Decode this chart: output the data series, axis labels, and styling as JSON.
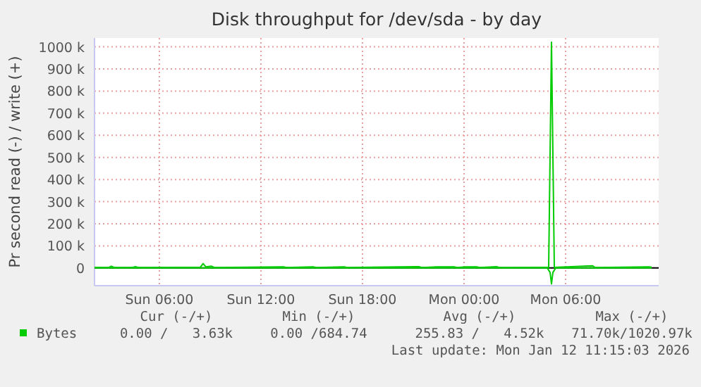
{
  "chart_data": {
    "type": "line",
    "title": "Disk throughput for /dev/sda - by day",
    "ylabel": "Pr second read (-) / write (+)",
    "xlim": [
      "2026-01-11T02:10",
      "2026-01-12T11:30"
    ],
    "xticks": [
      {
        "value": "2026-01-11T06:00",
        "label": "Sun 06:00"
      },
      {
        "value": "2026-01-11T12:00",
        "label": "Sun 12:00"
      },
      {
        "value": "2026-01-11T18:00",
        "label": "Sun 18:00"
      },
      {
        "value": "2026-01-12T00:00",
        "label": "Mon 00:00"
      },
      {
        "value": "2026-01-12T06:00",
        "label": "Mon 06:00"
      }
    ],
    "ylim": [
      -80000,
      1040000
    ],
    "yticks": [
      {
        "value": 0,
        "label": "0"
      },
      {
        "value": 100000,
        "label": "100 k"
      },
      {
        "value": 200000,
        "label": "200 k"
      },
      {
        "value": 300000,
        "label": "300 k"
      },
      {
        "value": 400000,
        "label": "400 k"
      },
      {
        "value": 500000,
        "label": "500 k"
      },
      {
        "value": 600000,
        "label": "600 k"
      },
      {
        "value": 700000,
        "label": "700 k"
      },
      {
        "value": 800000,
        "label": "800 k"
      },
      {
        "value": 900000,
        "label": "900 k"
      },
      {
        "value": 1000000,
        "label": "1000 k"
      }
    ],
    "grid": true,
    "legend": "bottom",
    "series": [
      {
        "name": "Bytes",
        "color": "#00cc00",
        "x": [
          "2026-01-11T02:10",
          "2026-01-11T03:00",
          "2026-01-11T03:10",
          "2026-01-11T03:20",
          "2026-01-11T04:25",
          "2026-01-11T04:35",
          "2026-01-11T04:45",
          "2026-01-11T08:25",
          "2026-01-11T08:35",
          "2026-01-11T08:45",
          "2026-01-11T09:05",
          "2026-01-11T09:15",
          "2026-01-11T13:20",
          "2026-01-11T13:30",
          "2026-01-11T15:05",
          "2026-01-11T15:15",
          "2026-01-11T16:55",
          "2026-01-11T17:05",
          "2026-01-11T21:10",
          "2026-01-11T21:20",
          "2026-01-11T21:30",
          "2026-01-11T22:25",
          "2026-01-11T23:25",
          "2026-01-11T23:35",
          "2026-01-12T00:05",
          "2026-01-12T00:45",
          "2026-01-12T00:55",
          "2026-01-12T01:55",
          "2026-01-12T02:05",
          "2026-01-12T05:00",
          "2026-01-12T05:10",
          "2026-01-12T05:20",
          "2026-01-12T07:35",
          "2026-01-12T07:45",
          "2026-01-12T10:55",
          "2026-01-12T11:05"
        ],
        "values": [
          3000,
          2000,
          8000,
          2000,
          2000,
          6000,
          2000,
          3000,
          20000,
          5000,
          8000,
          2000,
          5000,
          2000,
          5000,
          2000,
          5000,
          2000,
          6000,
          6000,
          2000,
          5000,
          5000,
          2000,
          5000,
          5000,
          2000,
          6000,
          2000,
          3000,
          1020970,
          3000,
          10000,
          2000,
          5000,
          3630
        ]
      },
      {
        "color": "#00cc00",
        "x": [
          "2026-01-11T02:10",
          "2026-01-12T04:55",
          "2026-01-12T05:05",
          "2026-01-12T05:10",
          "2026-01-12T05:15",
          "2026-01-12T05:25",
          "2026-01-12T11:05"
        ],
        "values": [
          0,
          0,
          -20000,
          -71700,
          -20000,
          0,
          0
        ]
      }
    ],
    "annotations": [
      "Cur (-/+)",
      "Min (-/+)",
      "Avg (-/+)",
      "Max (-/+)",
      "0.00 /   3.63k",
      "0.00 /684.74",
      "255.83 /   4.52k",
      "71.70k/1020.97k",
      "Last update: Mon Jan 12 11:15:03 2026"
    ]
  }
}
